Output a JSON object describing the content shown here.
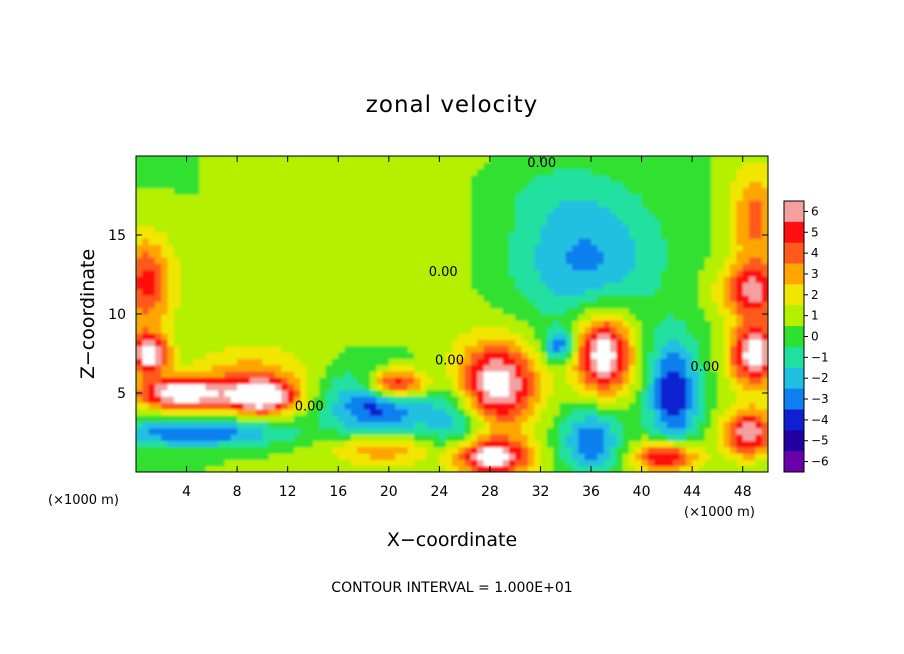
{
  "chart_data": {
    "type": "heatmap",
    "title": "zonal velocity",
    "xlabel": "X−coordinate",
    "ylabel": "Z−coordinate",
    "x_unit_left": "(×1000 m)",
    "x_unit_right": "(×1000 m)",
    "xlim": [
      0,
      50
    ],
    "ylim": [
      0,
      20
    ],
    "xticks": [
      4,
      8,
      12,
      16,
      20,
      24,
      28,
      32,
      36,
      40,
      44,
      48
    ],
    "yticks": [
      5,
      10,
      15
    ],
    "colorbar": {
      "ticks": [
        6,
        5,
        4,
        3,
        2,
        1,
        0,
        -1,
        -2,
        -3,
        -4,
        -5,
        -6
      ],
      "labels": [
        "6",
        "5",
        "4",
        "3",
        "2",
        "1",
        "0",
        "−1",
        "−2",
        "−3",
        "−4",
        "−5",
        "−6"
      ],
      "colors": [
        "#f4a0a0",
        "#ff1010",
        "#ff5a1a",
        "#ffa500",
        "#f0e600",
        "#b4f000",
        "#30e030",
        "#20e0a0",
        "#20c0e0",
        "#1080f0",
        "#1020d0",
        "#2000a0",
        "#6a00a8"
      ],
      "out_of_range_color": "#ffffff"
    },
    "contour_labels": [
      {
        "text": "0.00",
        "x": 32.1,
        "y": 19.3
      },
      {
        "text": "0.00",
        "x": 24.3,
        "y": 12.4
      },
      {
        "text": "0.00",
        "x": 24.8,
        "y": 6.8
      },
      {
        "text": "0.00",
        "x": 13.7,
        "y": 3.9
      },
      {
        "text": "0.00",
        "x": 45.0,
        "y": 6.4
      }
    ],
    "features": [
      {
        "x": 0.8,
        "y": 12.0,
        "value": 4.5,
        "rx": 2.2,
        "ry": 3.0
      },
      {
        "x": 48.8,
        "y": 11.5,
        "value": 5.0,
        "rx": 2.6,
        "ry": 1.6
      },
      {
        "x": 49.0,
        "y": 16.0,
        "value": 3.5,
        "rx": 2.0,
        "ry": 3.5
      },
      {
        "x": 35.0,
        "y": 12.5,
        "value": -2.2,
        "rx": 6.0,
        "ry": 3.5
      },
      {
        "x": 36.0,
        "y": 15.0,
        "value": -1.6,
        "rx": 6.0,
        "ry": 3.5
      },
      {
        "x": 33.0,
        "y": 18.0,
        "value": -1.0,
        "rx": 6.0,
        "ry": 2.5
      },
      {
        "x": 9.0,
        "y": 6.0,
        "value": 2.5,
        "rx": 5.0,
        "ry": 2.0
      },
      {
        "x": 3.5,
        "y": 5.0,
        "value": 7.0,
        "rx": 3.5,
        "ry": 1.0
      },
      {
        "x": 10.0,
        "y": 4.8,
        "value": 7.0,
        "rx": 2.6,
        "ry": 1.0
      },
      {
        "x": 1.0,
        "y": 7.5,
        "value": 7.0,
        "rx": 1.5,
        "ry": 1.2
      },
      {
        "x": 5.0,
        "y": 2.5,
        "value": -4.0,
        "rx": 7.0,
        "ry": 0.9
      },
      {
        "x": 19.0,
        "y": 4.5,
        "value": -5.0,
        "rx": 4.0,
        "ry": 2.2
      },
      {
        "x": 20.5,
        "y": 5.6,
        "value": 7.0,
        "rx": 2.5,
        "ry": 1.0
      },
      {
        "x": 28.5,
        "y": 5.5,
        "value": 7.0,
        "rx": 3.0,
        "ry": 2.6
      },
      {
        "x": 37.0,
        "y": 7.5,
        "value": 7.0,
        "rx": 2.2,
        "ry": 2.5
      },
      {
        "x": 42.5,
        "y": 5.0,
        "value": -5.0,
        "rx": 2.0,
        "ry": 3.5
      },
      {
        "x": 49.0,
        "y": 7.5,
        "value": 7.0,
        "rx": 2.0,
        "ry": 2.0
      },
      {
        "x": 48.5,
        "y": 2.5,
        "value": 6.0,
        "rx": 2.0,
        "ry": 1.5
      },
      {
        "x": 36.0,
        "y": 2.0,
        "value": -4.0,
        "rx": 2.5,
        "ry": 2.2
      },
      {
        "x": 42.0,
        "y": 1.0,
        "value": 6.0,
        "rx": 2.5,
        "ry": 1.0
      },
      {
        "x": 28.0,
        "y": 1.0,
        "value": 7.0,
        "rx": 3.0,
        "ry": 1.2
      },
      {
        "x": 33.5,
        "y": 8.0,
        "value": -4.0,
        "rx": 1.2,
        "ry": 1.0
      },
      {
        "x": 25.5,
        "y": 3.0,
        "value": -3.0,
        "rx": 3.0,
        "ry": 2.5
      },
      {
        "x": 19.5,
        "y": 1.5,
        "value": 3.0,
        "rx": 4.0,
        "ry": 1.0
      }
    ]
  },
  "note": "CONTOUR INTERVAL = 1.000E+01"
}
